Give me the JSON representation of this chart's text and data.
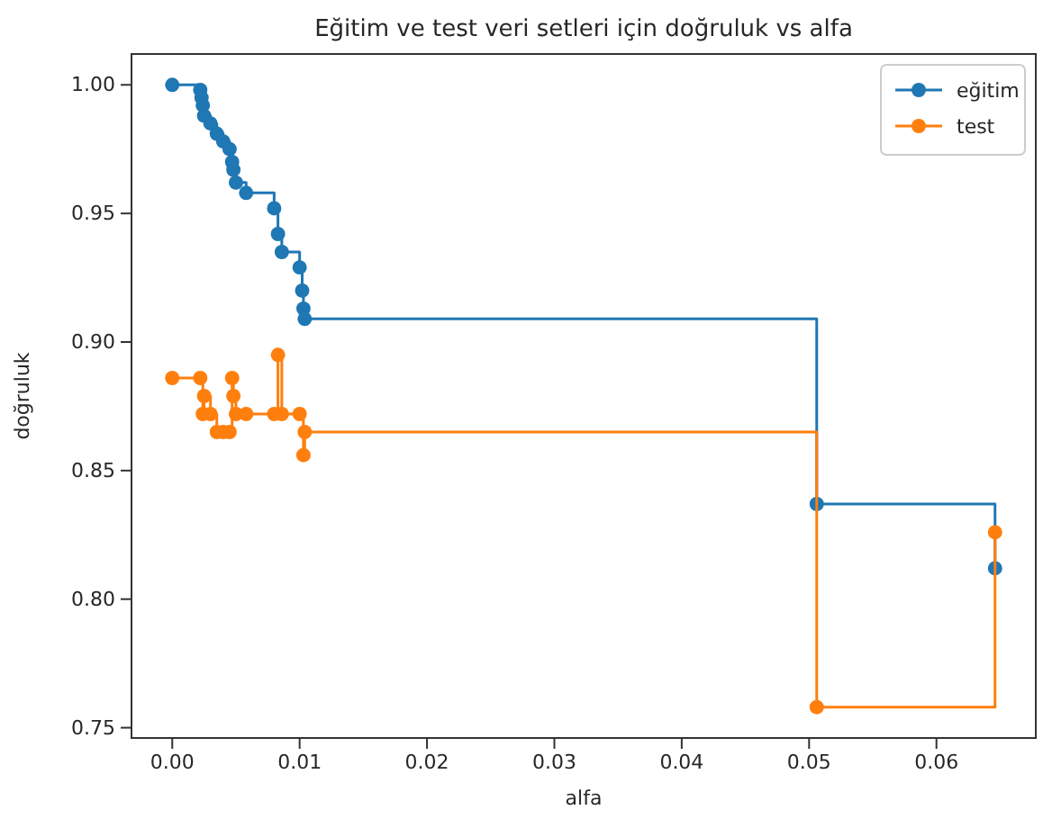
{
  "chart_data": {
    "type": "step",
    "title": "Eğitim ve test veri setleri için doğruluk vs alfa",
    "xlabel": "alfa",
    "ylabel": "doğruluk",
    "x": [
      0,
      0.0022,
      0.0023,
      0.0024,
      0.0025,
      0.003,
      0.0035,
      0.004,
      0.0045,
      0.0047,
      0.0048,
      0.005,
      0.0058,
      0.008,
      0.0083,
      0.0086,
      0.01,
      0.0102,
      0.0103,
      0.0104,
      0.0506,
      0.0646
    ],
    "series": [
      {
        "name": "eğitim",
        "color": "#1f77b4",
        "values": [
          1.0,
          0.998,
          0.995,
          0.992,
          0.988,
          0.985,
          0.981,
          0.978,
          0.975,
          0.97,
          0.967,
          0.962,
          0.958,
          0.952,
          0.942,
          0.935,
          0.929,
          0.92,
          0.913,
          0.909,
          0.837,
          0.812
        ]
      },
      {
        "name": "test",
        "color": "#ff7f0e",
        "values": [
          0.886,
          0.886,
          null,
          0.872,
          0.879,
          0.872,
          0.865,
          0.865,
          0.865,
          0.886,
          0.879,
          0.872,
          0.872,
          0.872,
          0.895,
          0.872,
          0.872,
          null,
          0.856,
          0.865,
          0.758,
          0.826
        ]
      }
    ],
    "xlim": [
      -0.0032,
      0.0678
    ],
    "ylim": [
      0.746,
      1.012
    ],
    "xticks": [
      {
        "value": 0,
        "label": "0.00"
      },
      {
        "value": 0.01,
        "label": "0.01"
      },
      {
        "value": 0.02,
        "label": "0.02"
      },
      {
        "value": 0.03,
        "label": "0.03"
      },
      {
        "value": 0.04,
        "label": "0.04"
      },
      {
        "value": 0.05,
        "label": "0.05"
      },
      {
        "value": 0.06,
        "label": "0.06"
      }
    ],
    "yticks": [
      {
        "value": 0.75,
        "label": "0.75"
      },
      {
        "value": 0.8,
        "label": "0.80"
      },
      {
        "value": 0.85,
        "label": "0.85"
      },
      {
        "value": 0.9,
        "label": "0.90"
      },
      {
        "value": 0.95,
        "label": "0.95"
      },
      {
        "value": 1.0,
        "label": "1.00"
      }
    ],
    "marker": "circle",
    "legend": "top right",
    "grid": false
  }
}
